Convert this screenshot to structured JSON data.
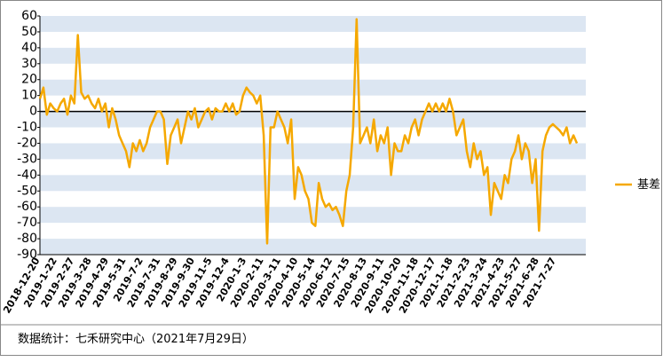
{
  "chart_data": {
    "type": "line",
    "categories": [
      "2018-12-20",
      null,
      null,
      null,
      null,
      "2019-1-22",
      null,
      null,
      null,
      null,
      "2019-2-27",
      null,
      null,
      null,
      null,
      "2019-3-28",
      null,
      null,
      null,
      null,
      "2019-4-29",
      null,
      null,
      null,
      null,
      "2019-5-31",
      null,
      null,
      null,
      null,
      "2019-7-2",
      null,
      null,
      null,
      null,
      "2019-7-31",
      null,
      null,
      null,
      null,
      "2019-8-29",
      null,
      null,
      null,
      null,
      "2019-9-30",
      null,
      null,
      null,
      null,
      "2019-11-5",
      null,
      null,
      null,
      null,
      "2019-12-4",
      null,
      null,
      null,
      null,
      "2020-1-3",
      null,
      null,
      null,
      null,
      "2020-2-11",
      null,
      null,
      null,
      null,
      "2020-3-11",
      null,
      null,
      null,
      null,
      "2020-4-10",
      null,
      null,
      null,
      null,
      "2020-5-14",
      null,
      null,
      null,
      null,
      "2020-6-12",
      null,
      null,
      null,
      null,
      "2020-7-15",
      null,
      null,
      null,
      null,
      "2020-8-13",
      null,
      null,
      null,
      null,
      "2020-9-11",
      null,
      null,
      null,
      null,
      "2020-10-20",
      null,
      null,
      null,
      null,
      "2020-11-18",
      null,
      null,
      null,
      null,
      "2020-12-17",
      null,
      null,
      null,
      null,
      "2021-1-18",
      null,
      null,
      null,
      null,
      "2021-2-23",
      null,
      null,
      null,
      null,
      "2021-3-24",
      null,
      null,
      null,
      null,
      "2021-4-23",
      null,
      null,
      null,
      null,
      "2021-5-27",
      null,
      null,
      null,
      null,
      "2021-6-28",
      null,
      null,
      null,
      null,
      "2021-7-27",
      null,
      null,
      null,
      null,
      null,
      null
    ],
    "series": [
      {
        "name": "基差",
        "color": "#f5a800",
        "values": [
          8,
          15,
          -2,
          5,
          2,
          0,
          5,
          8,
          -2,
          10,
          5,
          48,
          12,
          8,
          10,
          5,
          2,
          8,
          0,
          5,
          -10,
          2,
          -5,
          -15,
          -20,
          -25,
          -35,
          -20,
          -25,
          -18,
          -25,
          -20,
          -10,
          -5,
          0,
          0,
          -5,
          -33,
          -15,
          -10,
          -5,
          -20,
          -10,
          0,
          -5,
          2,
          -10,
          -5,
          0,
          2,
          -5,
          2,
          0,
          0,
          5,
          0,
          5,
          -2,
          0,
          10,
          15,
          12,
          10,
          5,
          10,
          -15,
          -83,
          -10,
          -10,
          0,
          -5,
          -10,
          -20,
          -5,
          -55,
          -35,
          -40,
          -50,
          -55,
          -70,
          -72,
          -45,
          -55,
          -60,
          -58,
          -62,
          -60,
          -65,
          -72,
          -50,
          -40,
          -10,
          58,
          -20,
          -15,
          -10,
          -20,
          -5,
          -25,
          -15,
          -20,
          -10,
          -40,
          -20,
          -25,
          -25,
          -15,
          -20,
          -10,
          -5,
          -15,
          -5,
          0,
          5,
          0,
          5,
          0,
          5,
          0,
          8,
          0,
          -15,
          -10,
          -5,
          -25,
          -35,
          -20,
          -30,
          -25,
          -40,
          -35,
          -65,
          -45,
          -50,
          -55,
          -40,
          -45,
          -30,
          -25,
          -15,
          -30,
          -20,
          -25,
          -45,
          -30,
          -75,
          -25,
          -15,
          -10,
          -8,
          -10,
          -12,
          -15,
          -10,
          -20,
          -15,
          -20
        ]
      }
    ],
    "ylim": [
      -90,
      60
    ],
    "yticks": [
      -90,
      -80,
      -70,
      -60,
      -50,
      -40,
      -30,
      -20,
      -10,
      0,
      10,
      20,
      30,
      40,
      50,
      60
    ],
    "legend": "right",
    "source": "数据统计：七禾研究中心（2021年7月29日）"
  }
}
